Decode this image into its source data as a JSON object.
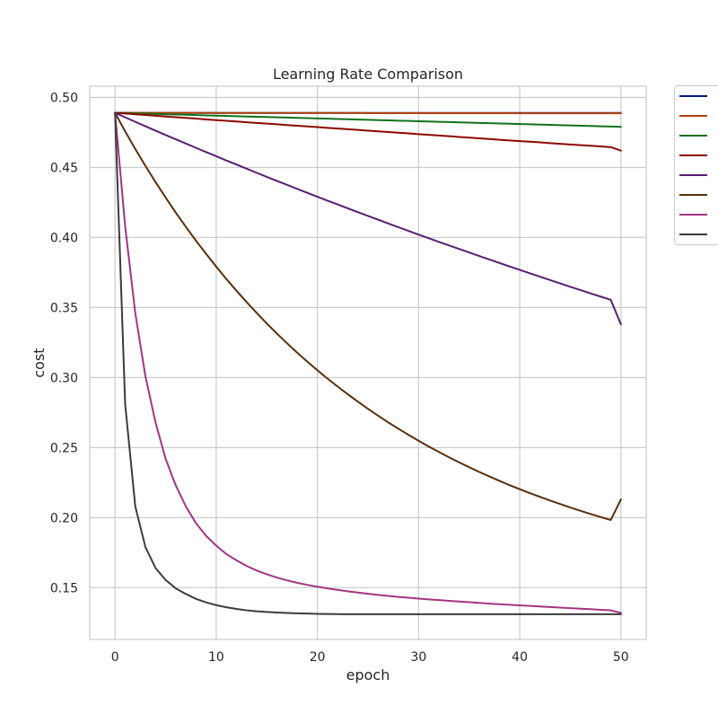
{
  "chart_data": {
    "type": "line",
    "title": "Learning Rate Comparison",
    "xlabel": "epoch",
    "ylabel": "cost",
    "xlim": [
      -2.5,
      52.5
    ],
    "ylim": [
      0.113,
      0.508
    ],
    "xticks": [
      0,
      10,
      20,
      30,
      40,
      50
    ],
    "yticks": [
      0.15,
      0.2,
      0.25,
      0.3,
      0.35,
      0.4,
      0.45,
      0.5
    ],
    "ytick_labels": [
      "0.15",
      "0.20",
      "0.25",
      "0.30",
      "0.35",
      "0.40",
      "0.45",
      "0.50"
    ],
    "grid": true,
    "legend_placement": "outside-top-right",
    "x": [
      0,
      1,
      2,
      3,
      4,
      5,
      6,
      7,
      8,
      9,
      10,
      11,
      12,
      13,
      14,
      15,
      16,
      17,
      18,
      19,
      20,
      21,
      22,
      23,
      24,
      25,
      26,
      27,
      28,
      29,
      30,
      31,
      32,
      33,
      34,
      35,
      36,
      37,
      38,
      39,
      40,
      41,
      42,
      43,
      44,
      45,
      46,
      47,
      48,
      49,
      50
    ],
    "series": [
      {
        "color": "#001c7f",
        "values": [
          0.4889,
          0.4889,
          0.4889,
          0.4889,
          0.4889,
          0.4889,
          0.4889,
          0.4889,
          0.4889,
          0.4889,
          0.4889,
          0.4889,
          0.4889,
          0.4889,
          0.4889,
          0.4889,
          0.4889,
          0.4889,
          0.4889,
          0.4889,
          0.4889,
          0.4889,
          0.4889,
          0.4889,
          0.4889,
          0.4889,
          0.4889,
          0.4889,
          0.4889,
          0.4889,
          0.4889,
          0.4889,
          0.4889,
          0.4889,
          0.4889,
          0.4889,
          0.4889,
          0.4889,
          0.4889,
          0.4889,
          0.4889,
          0.4889,
          0.4889,
          0.4889,
          0.4889,
          0.4889,
          0.4889,
          0.4889,
          0.4889,
          0.4889,
          0.4889
        ]
      },
      {
        "color": "#b1400d",
        "values": [
          0.489,
          0.489,
          0.489,
          0.489,
          0.489,
          0.489,
          0.489,
          0.489,
          0.489,
          0.489,
          0.4889,
          0.4889,
          0.4889,
          0.4889,
          0.4889,
          0.4889,
          0.4889,
          0.4889,
          0.4889,
          0.4889,
          0.4889,
          0.4889,
          0.4889,
          0.4889,
          0.4889,
          0.4888,
          0.4888,
          0.4888,
          0.4888,
          0.4888,
          0.4888,
          0.4888,
          0.4888,
          0.4888,
          0.4888,
          0.4888,
          0.4888,
          0.4888,
          0.4888,
          0.4888,
          0.4887,
          0.4887,
          0.4887,
          0.4887,
          0.4887,
          0.4887,
          0.4887,
          0.4887,
          0.4887,
          0.4887,
          0.4887
        ]
      },
      {
        "color": "#12711c",
        "values": [
          0.489,
          0.4888,
          0.4886,
          0.4884,
          0.4882,
          0.488,
          0.4878,
          0.4876,
          0.4874,
          0.4872,
          0.487,
          0.4868,
          0.4866,
          0.4864,
          0.4862,
          0.486,
          0.4858,
          0.4856,
          0.4854,
          0.4852,
          0.485,
          0.4848,
          0.4846,
          0.4844,
          0.4842,
          0.484,
          0.4838,
          0.4836,
          0.4834,
          0.4832,
          0.483,
          0.4828,
          0.4826,
          0.4824,
          0.4822,
          0.482,
          0.4818,
          0.4816,
          0.4814,
          0.4812,
          0.481,
          0.4808,
          0.4806,
          0.4804,
          0.4802,
          0.48,
          0.4798,
          0.4796,
          0.4794,
          0.4792,
          0.479
        ]
      },
      {
        "color": "#8c0800",
        "values": [
          0.489,
          0.4885,
          0.488,
          0.4875,
          0.4869,
          0.4864,
          0.4859,
          0.4854,
          0.4849,
          0.4843,
          0.4838,
          0.4833,
          0.4828,
          0.4823,
          0.4818,
          0.4813,
          0.4808,
          0.4803,
          0.4798,
          0.4793,
          0.4788,
          0.4783,
          0.4778,
          0.4773,
          0.4768,
          0.4763,
          0.4758,
          0.4753,
          0.4748,
          0.4743,
          0.4738,
          0.4733,
          0.4728,
          0.4723,
          0.4718,
          0.4713,
          0.4708,
          0.4703,
          0.4698,
          0.4693,
          0.4688,
          0.4684,
          0.4679,
          0.4674,
          0.4669,
          0.4664,
          0.4659,
          0.4655,
          0.465,
          0.4645,
          0.462
        ]
      },
      {
        "color": "#591e71",
        "values": [
          0.489,
          0.4858,
          0.4826,
          0.4794,
          0.4763,
          0.4732,
          0.4701,
          0.4671,
          0.464,
          0.461,
          0.458,
          0.455,
          0.4521,
          0.4491,
          0.4462,
          0.4433,
          0.4404,
          0.4376,
          0.4347,
          0.4319,
          0.4291,
          0.4263,
          0.4236,
          0.4208,
          0.4181,
          0.4154,
          0.4127,
          0.41,
          0.4074,
          0.4047,
          0.4021,
          0.3995,
          0.3969,
          0.3944,
          0.3918,
          0.3893,
          0.3868,
          0.3843,
          0.3818,
          0.3793,
          0.3769,
          0.3744,
          0.372,
          0.3696,
          0.3672,
          0.3648,
          0.3625,
          0.3601,
          0.3578,
          0.3555,
          0.338
        ]
      },
      {
        "color": "#592f0d",
        "values": [
          0.489,
          0.4758,
          0.4632,
          0.4512,
          0.4396,
          0.4285,
          0.4178,
          0.4076,
          0.3977,
          0.3883,
          0.3792,
          0.3704,
          0.362,
          0.3539,
          0.3461,
          0.3386,
          0.3314,
          0.3245,
          0.3178,
          0.3114,
          0.3052,
          0.2993,
          0.2936,
          0.2881,
          0.2828,
          0.2777,
          0.2728,
          0.268,
          0.2635,
          0.2591,
          0.2549,
          0.2508,
          0.2469,
          0.2431,
          0.2395,
          0.236,
          0.2326,
          0.2294,
          0.2262,
          0.2232,
          0.2203,
          0.2175,
          0.2148,
          0.2122,
          0.2097,
          0.2072,
          0.2049,
          0.2026,
          0.2004,
          0.1983,
          0.213
        ]
      },
      {
        "color": "#a23582",
        "values": [
          0.489,
          0.408,
          0.346,
          0.301,
          0.268,
          0.242,
          0.223,
          0.208,
          0.196,
          0.187,
          0.18,
          0.174,
          0.1695,
          0.1655,
          0.1622,
          0.1595,
          0.1572,
          0.1552,
          0.1535,
          0.152,
          0.1507,
          0.1495,
          0.1484,
          0.1474,
          0.1465,
          0.1456,
          0.1448,
          0.1441,
          0.1434,
          0.1428,
          0.1422,
          0.1416,
          0.1411,
          0.1406,
          0.1401,
          0.1396,
          0.1391,
          0.1386,
          0.1382,
          0.1378,
          0.1374,
          0.137,
          0.1366,
          0.1362,
          0.1358,
          0.1354,
          0.135,
          0.1346,
          0.1342,
          0.1338,
          0.132
        ]
      },
      {
        "color": "#3c3c3c",
        "values": [
          0.489,
          0.281,
          0.208,
          0.179,
          0.164,
          0.1555,
          0.1495,
          0.1455,
          0.142,
          0.1395,
          0.1375,
          0.136,
          0.1348,
          0.1338,
          0.1331,
          0.1326,
          0.1322,
          0.1319,
          0.1317,
          0.1315,
          0.1313,
          0.1312,
          0.1311,
          0.131,
          0.131,
          0.131,
          0.131,
          0.131,
          0.131,
          0.131,
          0.131,
          0.131,
          0.131,
          0.131,
          0.131,
          0.131,
          0.131,
          0.131,
          0.131,
          0.131,
          0.131,
          0.131,
          0.131,
          0.131,
          0.131,
          0.131,
          0.131,
          0.131,
          0.131,
          0.131,
          0.131
        ]
      }
    ]
  }
}
